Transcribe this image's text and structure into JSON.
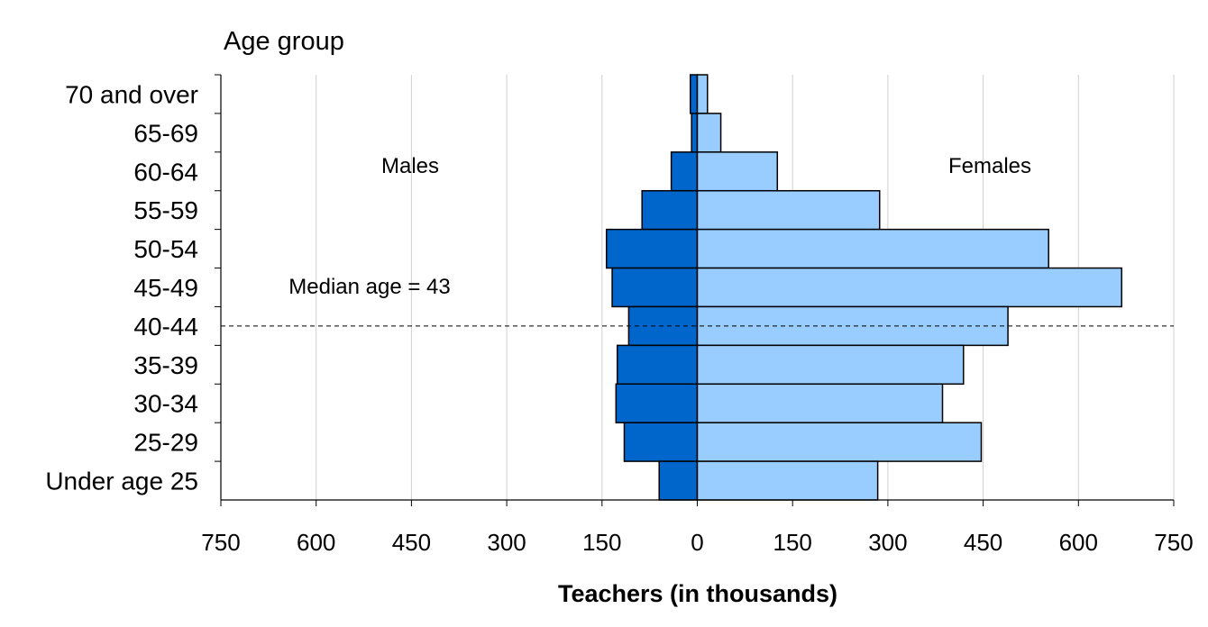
{
  "chart_data": {
    "type": "bar",
    "orientation": "horizontal",
    "subtype": "population-pyramid",
    "categories": [
      "70 and over",
      "65-69",
      "60-64",
      "55-59",
      "50-54",
      "45-49",
      "40-44",
      "35-39",
      "30-34",
      "25-29",
      "Under age 25"
    ],
    "series": [
      {
        "name": "Males",
        "color": "#0066CC",
        "values": [
          11,
          9,
          41,
          87,
          143,
          134,
          108,
          126,
          128,
          115,
          60
        ]
      },
      {
        "name": "Females",
        "color": "#99CCFF",
        "values": [
          16,
          37,
          126,
          287,
          553,
          668,
          489,
          419,
          386,
          447,
          284
        ]
      }
    ],
    "ylabel": "Age group",
    "xlabel": "Teachers (in thousands)",
    "xlim": [
      -750,
      750
    ],
    "xticks": [
      -750,
      -600,
      -450,
      -300,
      -150,
      0,
      150,
      300,
      450,
      600,
      750
    ],
    "xtick_labels": [
      "750",
      "600",
      "450",
      "300",
      "150",
      "0",
      "150",
      "300",
      "450",
      "600",
      "750"
    ],
    "grid": true,
    "annotations": {
      "males_label": "Males",
      "females_label": "Females",
      "median_label": "Median age = 43",
      "median_category": "40-44"
    }
  }
}
